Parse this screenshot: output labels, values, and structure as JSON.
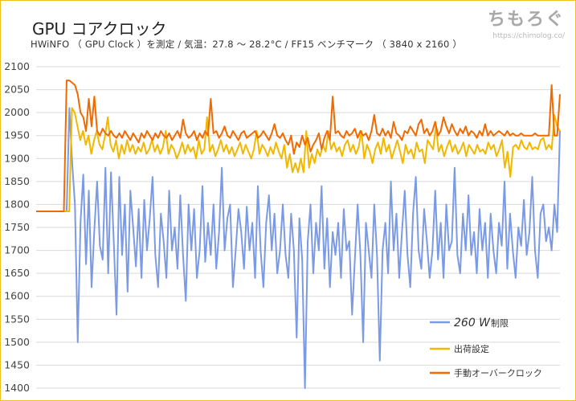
{
  "header": {
    "title": "GPU コアクロック",
    "subtitle": "HWiNFO （ GPU Clock ）を測定 / 気温：27.8 〜 28.2°C / FF15 ベンチマーク （ 3840 x 2160 ）"
  },
  "brand": {
    "logo": "ちもろぐ",
    "url": "https://chimolog.co/"
  },
  "legend": {
    "s1_value": "260 W",
    "s1_suffix": "制限",
    "s2": "出荷設定",
    "s3": "手動オーバークロック"
  },
  "chart_data": {
    "type": "line",
    "ylim": [
      1400,
      2100
    ],
    "yticks": [
      1400,
      1450,
      1500,
      1550,
      1600,
      1650,
      1700,
      1750,
      1800,
      1850,
      1900,
      1950,
      2000,
      2050,
      2100
    ],
    "grid": "horizontal",
    "legend_position": "bottom-right",
    "series": [
      {
        "name": "260 W 制限",
        "color": "#7b9ae6",
        "values": [
          1785,
          1785,
          1785,
          1785,
          1785,
          1785,
          1785,
          1785,
          1785,
          1785,
          1785,
          1785,
          2010,
          1890,
          1800,
          1500,
          1760,
          1865,
          1670,
          1830,
          1620,
          1745,
          1850,
          1710,
          1680,
          1880,
          1650,
          1870,
          1720,
          1560,
          1860,
          1690,
          1800,
          1610,
          1830,
          1750,
          1665,
          1790,
          1640,
          1810,
          1700,
          1770,
          1860,
          1690,
          1620,
          1780,
          1720,
          1640,
          1830,
          1700,
          1750,
          1660,
          1820,
          1690,
          1590,
          1800,
          1700,
          1790,
          1640,
          1700,
          1840,
          1675,
          1760,
          1690,
          1800,
          1660,
          1740,
          1880,
          1700,
          1770,
          1800,
          1620,
          1700,
          1790,
          1740,
          1660,
          1795,
          1700,
          1760,
          1640,
          1840,
          1700,
          1620,
          1760,
          1820,
          1700,
          1780,
          1650,
          1700,
          1800,
          1690,
          1640,
          1780,
          1700,
          1510,
          1770,
          1680,
          1400,
          1720,
          1800,
          1650,
          1760,
          1700,
          1840,
          1660,
          1770,
          1620,
          1740,
          1690,
          1760,
          1640,
          1790,
          1700,
          1720,
          1560,
          1680,
          1800,
          1690,
          1500,
          1760,
          1700,
          1640,
          1800,
          1690,
          1460,
          1700,
          1760,
          1650,
          1850,
          1700,
          1780,
          1640,
          1740,
          1830,
          1690,
          1620,
          1780,
          1860,
          1700,
          1660,
          1790,
          1720,
          1640,
          1700,
          1830,
          1680,
          1760,
          1640,
          1800,
          1700,
          1720,
          1880,
          1690,
          1650,
          1780,
          1700,
          1820,
          1690,
          1740,
          1650,
          1790,
          1700,
          1760,
          1640,
          1780,
          1700,
          1650,
          1760,
          1710,
          1850,
          1660,
          1780,
          1700,
          1640,
          1750,
          1710,
          1810,
          1690,
          1740,
          1860,
          1700,
          1640,
          1780,
          1800,
          1720,
          1750,
          1700,
          1800,
          1740,
          1960
        ]
      },
      {
        "name": "出荷設定",
        "color": "#f2b800",
        "values": [
          1785,
          1785,
          1785,
          1785,
          1785,
          1785,
          1785,
          1785,
          1785,
          1785,
          1785,
          1785,
          1785,
          2010,
          2000,
          1970,
          1940,
          1960,
          1930,
          1950,
          1910,
          1940,
          1960,
          1930,
          1920,
          1950,
          1990,
          1930,
          1915,
          1940,
          1900,
          1930,
          1910,
          1940,
          1915,
          1930,
          1910,
          1925,
          1915,
          1935,
          1910,
          1920,
          1940,
          1915,
          1930,
          1910,
          1925,
          1960,
          1910,
          1930,
          1920,
          1900,
          1915,
          1935,
          1910,
          1930,
          1915,
          1925,
          1900,
          1940,
          1910,
          1920,
          1990,
          1915,
          1930,
          1905,
          1920,
          1940,
          1915,
          1930,
          1910,
          1925,
          1905,
          1920,
          1935,
          1910,
          1930,
          1915,
          1900,
          1920,
          1960,
          1910,
          1930,
          1920,
          1905,
          1925,
          1910,
          1935,
          1915,
          1900,
          1930,
          1880,
          1910,
          1870,
          1890,
          1870,
          1900,
          1870,
          1960,
          1880,
          1910,
          1890,
          1920,
          1905,
          1930,
          1915,
          1960,
          1920,
          1935,
          1915,
          1925,
          1905,
          1930,
          1940,
          1915,
          1930,
          1910,
          1925,
          1960,
          1900,
          1930,
          1915,
          1890,
          1920,
          1935,
          1910,
          1945,
          1915,
          1930,
          1900,
          1920,
          1940,
          1915,
          1890,
          1930,
          1910,
          1920,
          1900,
          1935,
          1915,
          1920,
          1890,
          1940,
          1930,
          1920,
          1970,
          1915,
          1930,
          1905,
          1925,
          1940,
          1915,
          1930,
          1910,
          1920,
          1935,
          1905,
          1930,
          1920,
          1910,
          1930,
          1915,
          1920,
          1910,
          1935,
          1920,
          1930,
          1905,
          1920,
          1940,
          1880,
          1915,
          1860,
          1925,
          1930,
          1920,
          1940,
          1925,
          1920,
          1935,
          1920,
          1925,
          1920,
          1940,
          1945,
          1920,
          1930,
          1920,
          1995,
          1970,
          1960
        ]
      },
      {
        "name": "手動オーバークロック",
        "color": "#f06a00",
        "values": [
          1785,
          1785,
          1785,
          1785,
          1785,
          1785,
          1785,
          1785,
          1785,
          1785,
          1785,
          2070,
          2070,
          2065,
          2060,
          2040,
          2000,
          1990,
          1960,
          2030,
          1970,
          2035,
          1960,
          1950,
          1965,
          1955,
          1950,
          1960,
          1950,
          1945,
          1955,
          1945,
          1960,
          1950,
          1940,
          1955,
          1945,
          1935,
          1955,
          1945,
          1960,
          1950,
          1940,
          1955,
          1945,
          1960,
          1950,
          1945,
          1955,
          1940,
          1950,
          1960,
          1945,
          1985,
          1955,
          1945,
          1950,
          1960,
          1940,
          1955,
          1945,
          1960,
          1950,
          2030,
          1955,
          1960,
          1945,
          1955,
          1970,
          1950,
          1945,
          1960,
          1950,
          1940,
          1955,
          1960,
          1945,
          1950,
          1955,
          1960,
          1945,
          1950,
          1960,
          1950,
          1940,
          1955,
          1975,
          1950,
          1945,
          1955,
          1940,
          1930,
          1950,
          1910,
          1935,
          1925,
          1950,
          1930,
          1945,
          1915,
          1930,
          1940,
          1955,
          1920,
          1945,
          1960,
          1940,
          2035,
          1955,
          1960,
          1950,
          1945,
          1960,
          1950,
          1955,
          1965,
          1945,
          1960,
          1950,
          1955,
          1940,
          1960,
          1995,
          1955,
          1950,
          1965,
          1950,
          1960,
          1945,
          1980,
          1955,
          1950,
          1940,
          1960,
          1955,
          1970,
          1960,
          1950,
          1975,
          1985,
          1955,
          1965,
          1950,
          1960,
          1980,
          1950,
          1960,
          1990,
          1970,
          1955,
          1975,
          1960,
          1950,
          1965,
          1955,
          1970,
          1950,
          1960,
          1955,
          1945,
          1960,
          1950,
          1975,
          1950,
          1960,
          1950,
          1955,
          1960,
          1955,
          1950,
          1960,
          1950,
          1955,
          1950,
          1950,
          1955,
          1950,
          1950,
          1950,
          1950,
          1955,
          1950,
          1950,
          1950,
          1950,
          1950,
          2060,
          1950,
          1950,
          2040
        ]
      }
    ]
  }
}
